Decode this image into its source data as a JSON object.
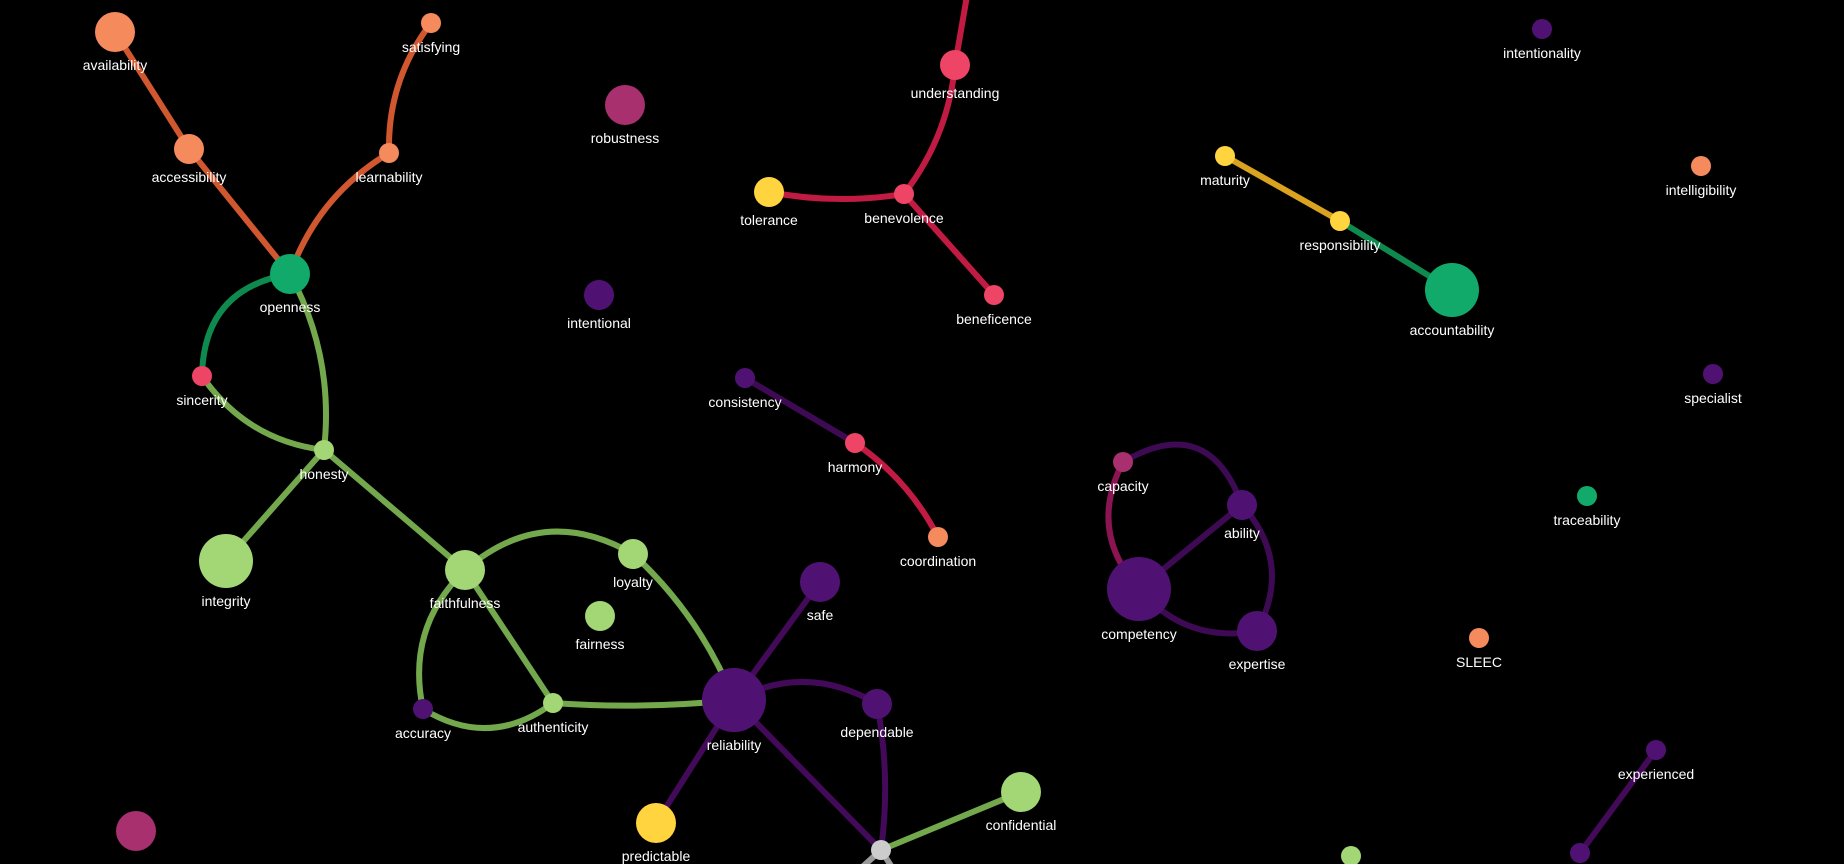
{
  "colors": {
    "background": "#000000",
    "orange": "#F58A5C",
    "green_mid": "#12AA6A",
    "green_light": "#A3D675",
    "pink": "#EE4466",
    "magenta": "#A8306E",
    "purple": "#501272",
    "yellow": "#FFD43F",
    "gray": "#CCCCCC",
    "edge_orange": "#D1572F",
    "edge_red": "#C21B43",
    "edge_green": "#0E8A4E",
    "edge_lightgreen": "#74A84D",
    "edge_purple": "#420A58",
    "edge_purple_dark": "#3E0A54",
    "edge_yellow": "#D9A21F",
    "edge_magenta": "#8A1552",
    "edge_gray": "#9A9A9A"
  },
  "nodes": [
    {
      "id": "availability",
      "label": "availability",
      "color": "orange",
      "size": "large"
    },
    {
      "id": "satisfying",
      "label": "satisfying",
      "color": "orange",
      "size": "small"
    },
    {
      "id": "accessibility",
      "label": "accessibility",
      "color": "orange",
      "size": "medium"
    },
    {
      "id": "learnability",
      "label": "learnability",
      "color": "orange",
      "size": "small"
    },
    {
      "id": "openness",
      "label": "openness",
      "color": "green_mid",
      "size": "large"
    },
    {
      "id": "robustness",
      "label": "robustness",
      "color": "magenta",
      "size": "large"
    },
    {
      "id": "intentional",
      "label": "intentional",
      "color": "purple",
      "size": "medium"
    },
    {
      "id": "sincerity",
      "label": "sincerity",
      "color": "pink",
      "size": "small"
    },
    {
      "id": "honesty",
      "label": "honesty",
      "color": "green_light",
      "size": "small"
    },
    {
      "id": "integrity",
      "label": "integrity",
      "color": "green_light",
      "size": "xlarge"
    },
    {
      "id": "faithfulness",
      "label": "faithfulness",
      "color": "green_light",
      "size": "large"
    },
    {
      "id": "loyalty",
      "label": "loyalty",
      "color": "green_light",
      "size": "medium"
    },
    {
      "id": "fairness",
      "label": "fairness",
      "color": "green_light",
      "size": "medium"
    },
    {
      "id": "accuracy",
      "label": "accuracy",
      "color": "purple",
      "size": "small"
    },
    {
      "id": "authenticity",
      "label": "authenticity",
      "color": "green_light",
      "size": "small"
    },
    {
      "id": "understanding",
      "label": "understanding",
      "color": "pink",
      "size": "medium"
    },
    {
      "id": "tolerance",
      "label": "tolerance",
      "color": "yellow",
      "size": "medium"
    },
    {
      "id": "benevolence",
      "label": "benevolence",
      "color": "pink",
      "size": "small"
    },
    {
      "id": "beneficence",
      "label": "beneficence",
      "color": "pink",
      "size": "small"
    },
    {
      "id": "consistency",
      "label": "consistency",
      "color": "purple",
      "size": "small"
    },
    {
      "id": "harmony",
      "label": "harmony",
      "color": "pink",
      "size": "small"
    },
    {
      "id": "coordination",
      "label": "coordination",
      "color": "orange",
      "size": "small"
    },
    {
      "id": "safe",
      "label": "safe",
      "color": "purple",
      "size": "large"
    },
    {
      "id": "reliability",
      "label": "reliability",
      "color": "purple",
      "size": "xxlarge"
    },
    {
      "id": "dependable",
      "label": "dependable",
      "color": "purple",
      "size": "medium"
    },
    {
      "id": "predictable",
      "label": "predictable",
      "color": "yellow",
      "size": "large"
    },
    {
      "id": "confidential",
      "label": "confidential",
      "color": "green_light",
      "size": "large"
    },
    {
      "id": "hub_bottom",
      "label": "",
      "color": "gray",
      "size": "small"
    },
    {
      "id": "maturity",
      "label": "maturity",
      "color": "yellow",
      "size": "small"
    },
    {
      "id": "responsibility",
      "label": "responsibility",
      "color": "yellow",
      "size": "small"
    },
    {
      "id": "accountability",
      "label": "accountability",
      "color": "green_mid",
      "size": "xlarge"
    },
    {
      "id": "capacity",
      "label": "capacity",
      "color": "magenta",
      "size": "small"
    },
    {
      "id": "ability",
      "label": "ability",
      "color": "purple",
      "size": "medium"
    },
    {
      "id": "competency",
      "label": "competency",
      "color": "purple",
      "size": "xxlarge"
    },
    {
      "id": "expertise",
      "label": "expertise",
      "color": "purple",
      "size": "large"
    },
    {
      "id": "intentionality",
      "label": "intentionality",
      "color": "purple",
      "size": "small"
    },
    {
      "id": "intelligibility",
      "label": "intelligibility",
      "color": "orange",
      "size": "small"
    },
    {
      "id": "specialist",
      "label": "specialist",
      "color": "purple",
      "size": "small"
    },
    {
      "id": "traceability",
      "label": "traceability",
      "color": "green_mid",
      "size": "small"
    },
    {
      "id": "SLEEC",
      "label": "SLEEC",
      "color": "orange",
      "size": "small"
    },
    {
      "id": "experienced",
      "label": "experienced",
      "color": "purple",
      "size": "small"
    },
    {
      "id": "bottom_purple",
      "label": "",
      "color": "purple",
      "size": "small"
    },
    {
      "id": "bottom_green",
      "label": "",
      "color": "green_light",
      "size": "small"
    },
    {
      "id": "bottom_magenta",
      "label": "",
      "color": "magenta",
      "size": "large"
    },
    {
      "id": "top_offscreen",
      "label": "",
      "color": "pink",
      "size": "small"
    }
  ],
  "edges": [
    {
      "source": "availability",
      "target": "accessibility",
      "color": "edge_orange"
    },
    {
      "source": "accessibility",
      "target": "openness",
      "color": "edge_orange"
    },
    {
      "source": "satisfying",
      "target": "learnability",
      "color": "edge_orange"
    },
    {
      "source": "learnability",
      "target": "openness",
      "color": "edge_orange"
    },
    {
      "source": "openness",
      "target": "sincerity",
      "color": "edge_green"
    },
    {
      "source": "openness",
      "target": "honesty",
      "color": "edge_lightgreen"
    },
    {
      "source": "sincerity",
      "target": "honesty",
      "color": "edge_lightgreen"
    },
    {
      "source": "honesty",
      "target": "integrity",
      "color": "edge_lightgreen"
    },
    {
      "source": "honesty",
      "target": "faithfulness",
      "color": "edge_lightgreen"
    },
    {
      "source": "faithfulness",
      "target": "loyalty",
      "color": "edge_lightgreen"
    },
    {
      "source": "faithfulness",
      "target": "accuracy",
      "color": "edge_lightgreen"
    },
    {
      "source": "faithfulness",
      "target": "authenticity",
      "color": "edge_lightgreen"
    },
    {
      "source": "accuracy",
      "target": "authenticity",
      "color": "edge_lightgreen"
    },
    {
      "source": "authenticity",
      "target": "reliability",
      "color": "edge_lightgreen"
    },
    {
      "source": "loyalty",
      "target": "reliability",
      "color": "edge_lightgreen"
    },
    {
      "source": "reliability",
      "target": "safe",
      "color": "edge_purple"
    },
    {
      "source": "reliability",
      "target": "dependable",
      "color": "edge_purple"
    },
    {
      "source": "reliability",
      "target": "predictable",
      "color": "edge_purple"
    },
    {
      "source": "reliability",
      "target": "hub_bottom",
      "color": "edge_purple"
    },
    {
      "source": "dependable",
      "target": "hub_bottom",
      "color": "edge_purple"
    },
    {
      "source": "hub_bottom",
      "target": "confidential",
      "color": "edge_lightgreen"
    },
    {
      "source": "top_offscreen",
      "target": "understanding",
      "color": "edge_red"
    },
    {
      "source": "understanding",
      "target": "benevolence",
      "color": "edge_red"
    },
    {
      "source": "tolerance",
      "target": "benevolence",
      "color": "edge_red"
    },
    {
      "source": "benevolence",
      "target": "beneficence",
      "color": "edge_red"
    },
    {
      "source": "consistency",
      "target": "harmony",
      "color": "edge_purple_dark"
    },
    {
      "source": "harmony",
      "target": "coordination",
      "color": "edge_red"
    },
    {
      "source": "maturity",
      "target": "responsibility",
      "color": "edge_yellow"
    },
    {
      "source": "responsibility",
      "target": "accountability",
      "color": "edge_green"
    },
    {
      "source": "capacity",
      "target": "ability",
      "color": "edge_purple_dark"
    },
    {
      "source": "capacity",
      "target": "competency",
      "color": "edge_magenta"
    },
    {
      "source": "ability",
      "target": "competency",
      "color": "edge_purple_dark"
    },
    {
      "source": "ability",
      "target": "expertise",
      "color": "edge_purple_dark"
    },
    {
      "source": "competency",
      "target": "expertise",
      "color": "edge_purple_dark"
    },
    {
      "source": "experienced",
      "target": "bottom_purple",
      "color": "edge_purple"
    }
  ]
}
